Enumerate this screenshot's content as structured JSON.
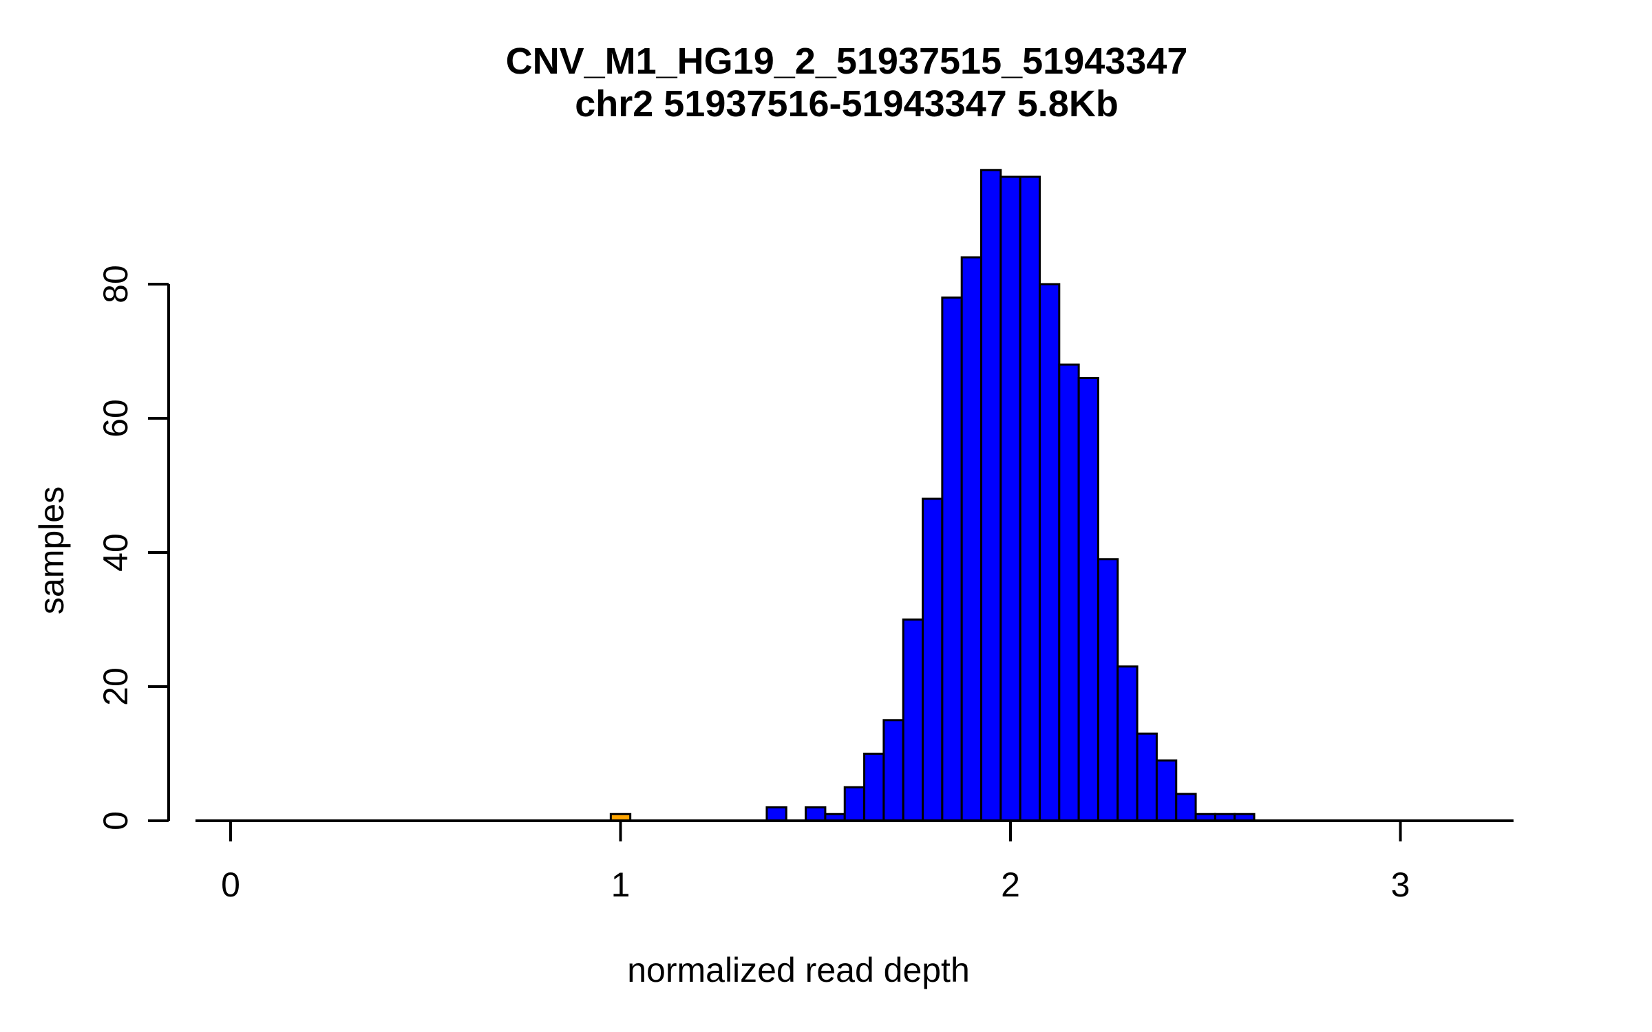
{
  "chart_data": {
    "type": "histogram",
    "title": "CNV_M1_HG19_2_51937515_51943347",
    "subtitle": "chr2 51937516-51943347 5.8Kb",
    "xlabel": "normalized read depth",
    "ylabel": "samples",
    "x_ticks": [
      0,
      1,
      2,
      3
    ],
    "y_ticks": [
      0,
      20,
      40,
      60,
      80
    ],
    "xlim": [
      -0.09,
      3.29
    ],
    "ylim": [
      0,
      97
    ],
    "bin_width": 0.05,
    "grid": "off",
    "legend": "none",
    "bar_fill": "#0000ff",
    "bar_stroke": "#000000",
    "highlight_fill": "#ffa500",
    "bins": {
      "x": [
        1.4,
        1.45,
        1.5,
        1.55,
        1.6,
        1.65,
        1.7,
        1.75,
        1.8,
        1.85,
        1.9,
        1.95,
        2.0,
        2.05,
        2.1,
        2.15,
        2.2,
        2.25,
        2.3,
        2.35,
        2.4,
        2.45,
        2.5,
        2.55,
        2.6
      ],
      "counts": [
        2,
        0,
        2,
        1,
        5,
        10,
        15,
        30,
        48,
        78,
        84,
        97,
        96,
        96,
        80,
        68,
        66,
        39,
        23,
        13,
        9,
        4,
        1,
        1,
        1
      ]
    },
    "highlight_bin": {
      "x": 1.0,
      "count": 1
    }
  }
}
